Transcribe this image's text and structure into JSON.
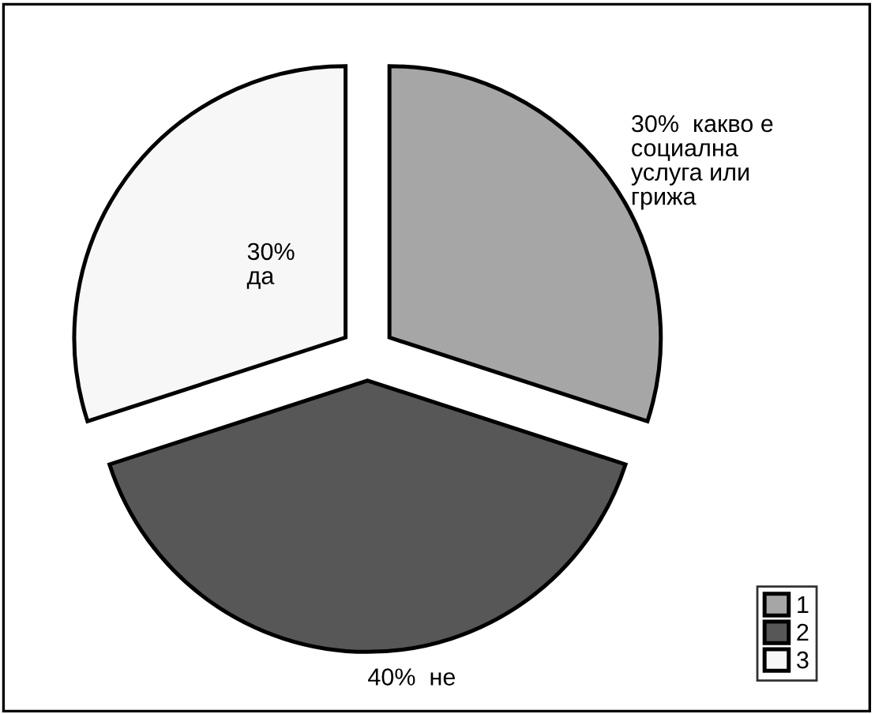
{
  "chart_data": {
    "type": "pie",
    "categories": [
      "1",
      "2",
      "3"
    ],
    "values": [
      30,
      40,
      30
    ],
    "colors": [
      "#a6a6a6",
      "#575757",
      "#f7f7f7"
    ],
    "value_labels": [
      "30%  какво е\nсоциална\nуслуга или\nгрижа",
      "40%  не",
      "30%\nда"
    ],
    "legend": "bottom right"
  }
}
